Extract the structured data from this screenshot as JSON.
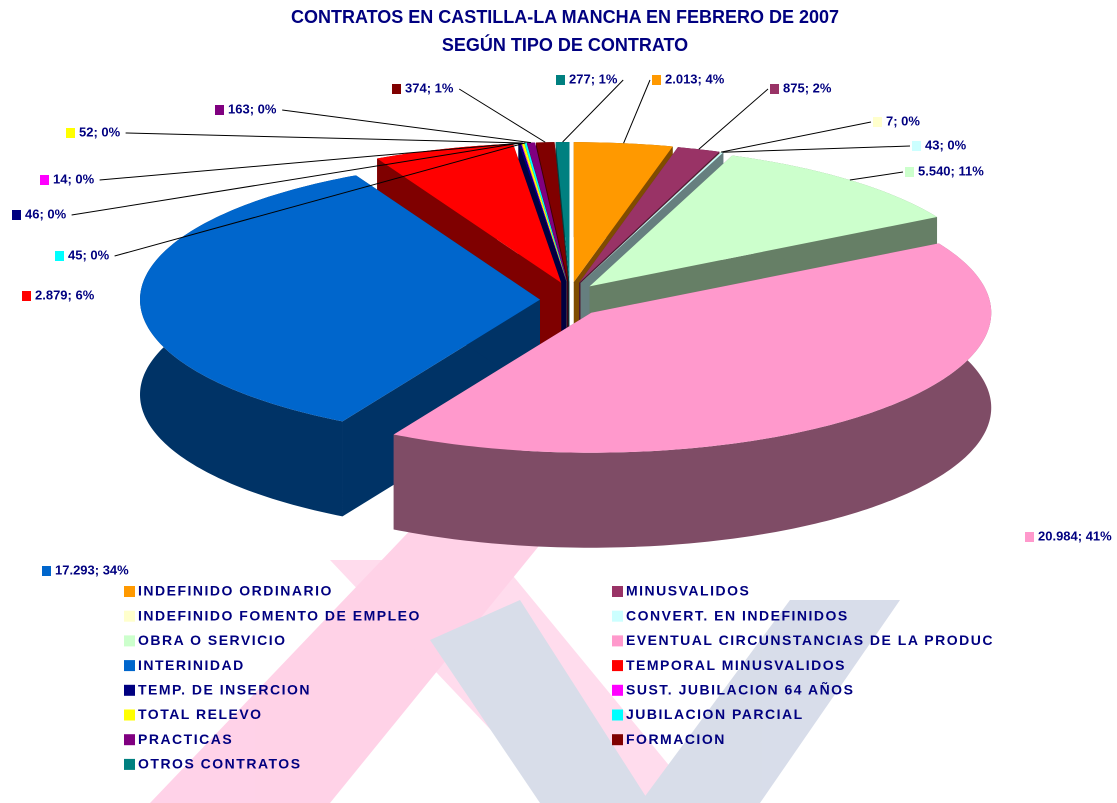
{
  "chart_data": {
    "type": "pie",
    "title": "CONTRATOS EN CASTILLA-LA MANCHA EN FEBRERO DE 2007",
    "subtitle": "SEGÚN TIPO DE CONTRATO",
    "categories": [
      "INDEFINIDO ORDINARIO",
      "MINUSVALIDOS",
      "INDEFINIDO FOMENTO DE EMPLEO",
      "CONVERT. EN INDEFINIDOS",
      "OBRA O SERVICIO",
      "EVENTUAL CIRCUNSTANCIAS DE LA PRODUC",
      "INTERINIDAD",
      "TEMPORAL MINUSVALIDOS",
      "TEMP. DE INSERCION",
      "SUST. JUBILACION 64 AÑOS",
      "TOTAL RELEVO",
      "JUBILACION PARCIAL",
      "PRACTICAS",
      "FORMACION",
      "OTROS CONTRATOS"
    ],
    "values": [
      2013,
      875,
      7,
      43,
      5540,
      20984,
      17293,
      2879,
      46,
      14,
      52,
      45,
      163,
      374,
      277
    ],
    "value_labels": [
      "2.013; 4%",
      "875; 2%",
      "7; 0%",
      "43; 0%",
      "5.540; 11%",
      "20.984; 41%",
      "17.293; 34%",
      "2.879; 6%",
      "46; 0%",
      "14; 0%",
      "52; 0%",
      "45; 0%",
      "163; 0%",
      "374; 1%",
      "277; 1%"
    ],
    "colors": [
      "#FF9900",
      "#993366",
      "#FFFFCC",
      "#CCFFFF",
      "#CCFFCC",
      "#FF99CC",
      "#0066CC",
      "#FF0000",
      "#000080",
      "#FF00FF",
      "#FFFF00",
      "#00FFFF",
      "#800080",
      "#800000",
      "#008080"
    ],
    "legend": "bottom"
  }
}
